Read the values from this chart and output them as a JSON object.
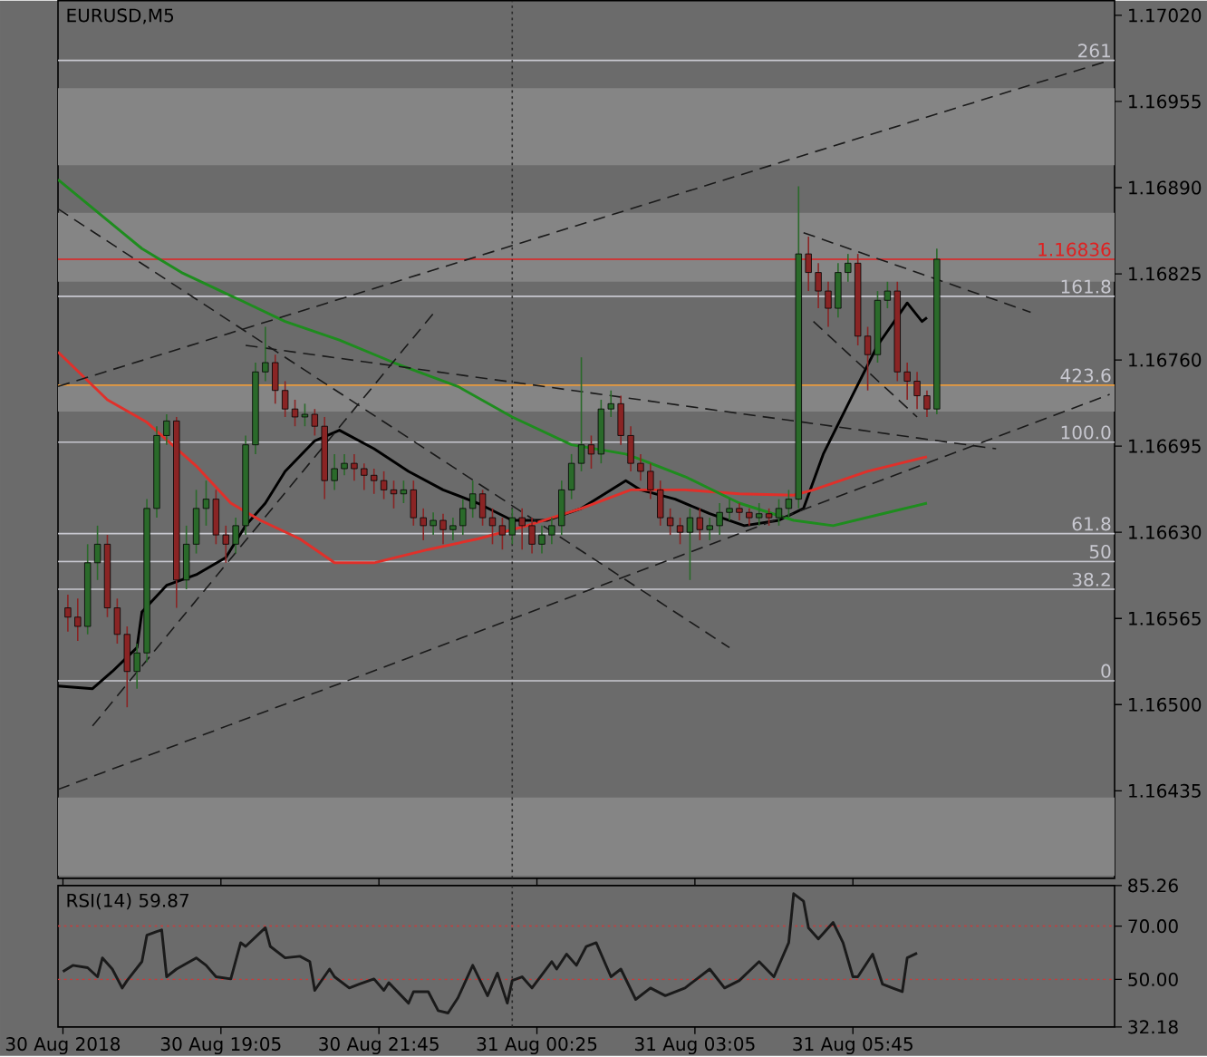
{
  "chart_data": [
    {
      "type": "candlestick",
      "title": "EURUSD,M5",
      "x": [
        "2018-08-30T16:30",
        "2018-08-30T16:40",
        "2018-08-30T16:50",
        "2018-08-30T17:00",
        "2018-08-30T17:10",
        "2018-08-30T17:20",
        "2018-08-30T17:30",
        "2018-08-30T17:40",
        "2018-08-30T17:50",
        "2018-08-30T18:00",
        "2018-08-30T18:10",
        "2018-08-30T18:20",
        "2018-08-30T18:30",
        "2018-08-30T18:40",
        "2018-08-30T18:50",
        "2018-08-30T19:00",
        "2018-08-30T19:10",
        "2018-08-30T19:20",
        "2018-08-30T19:30",
        "2018-08-30T19:40",
        "2018-08-30T19:50",
        "2018-08-30T20:00",
        "2018-08-30T20:10",
        "2018-08-30T20:20",
        "2018-08-30T20:30",
        "2018-08-30T20:40",
        "2018-08-30T20:50",
        "2018-08-30T21:00",
        "2018-08-30T21:10",
        "2018-08-30T21:20",
        "2018-08-30T21:30",
        "2018-08-30T21:40",
        "2018-08-30T21:50",
        "2018-08-30T22:00",
        "2018-08-30T22:10",
        "2018-08-30T22:20",
        "2018-08-30T22:30",
        "2018-08-30T22:40",
        "2018-08-30T22:50",
        "2018-08-30T23:00",
        "2018-08-30T23:10",
        "2018-08-30T23:20",
        "2018-08-30T23:30",
        "2018-08-30T23:40",
        "2018-08-30T23:50",
        "2018-08-31T00:00",
        "2018-08-31T00:10",
        "2018-08-31T00:20",
        "2018-08-31T00:30",
        "2018-08-31T00:40",
        "2018-08-31T00:50",
        "2018-08-31T01:00",
        "2018-08-31T01:10",
        "2018-08-31T01:20",
        "2018-08-31T01:30",
        "2018-08-31T01:40",
        "2018-08-31T01:50",
        "2018-08-31T02:00",
        "2018-08-31T02:10",
        "2018-08-31T02:20",
        "2018-08-31T02:30",
        "2018-08-31T02:40",
        "2018-08-31T02:50",
        "2018-08-31T03:00",
        "2018-08-31T03:10",
        "2018-08-31T03:20",
        "2018-08-31T03:30",
        "2018-08-31T03:40",
        "2018-08-31T03:50",
        "2018-08-31T04:00",
        "2018-08-31T04:10",
        "2018-08-31T04:20",
        "2018-08-31T04:30",
        "2018-08-31T04:40",
        "2018-08-31T04:50",
        "2018-08-31T05:00",
        "2018-08-31T05:10",
        "2018-08-31T05:20",
        "2018-08-31T05:30",
        "2018-08-31T05:40",
        "2018-08-31T05:50",
        "2018-08-31T06:00",
        "2018-08-31T06:10",
        "2018-08-31T06:20",
        "2018-08-31T06:30",
        "2018-08-31T06:40",
        "2018-08-31T06:50",
        "2018-08-31T07:00",
        "2018-08-31T07:10"
      ],
      "ohlc": [
        [
          1.16573,
          1.16583,
          1.16555,
          1.16566
        ],
        [
          1.16566,
          1.1658,
          1.16548,
          1.16559
        ],
        [
          1.16559,
          1.16621,
          1.16553,
          1.16607
        ],
        [
          1.16607,
          1.16635,
          1.16594,
          1.16621
        ],
        [
          1.16621,
          1.16628,
          1.16566,
          1.16573
        ],
        [
          1.16573,
          1.1658,
          1.16546,
          1.16553
        ],
        [
          1.16553,
          1.16559,
          1.16498,
          1.16525
        ],
        [
          1.16525,
          1.16546,
          1.16512,
          1.16539
        ],
        [
          1.16539,
          1.16655,
          1.16532,
          1.16648
        ],
        [
          1.16648,
          1.1671,
          1.16641,
          1.16703
        ],
        [
          1.16703,
          1.16719,
          1.16696,
          1.16714
        ],
        [
          1.16714,
          1.16717,
          1.16573,
          1.16594
        ],
        [
          1.16594,
          1.16635,
          1.16587,
          1.16621
        ],
        [
          1.16621,
          1.16662,
          1.16614,
          1.16648
        ],
        [
          1.16648,
          1.16669,
          1.16635,
          1.16655
        ],
        [
          1.16655,
          1.16662,
          1.16621,
          1.16628
        ],
        [
          1.16628,
          1.16635,
          1.16607,
          1.16621
        ],
        [
          1.16621,
          1.16641,
          1.16614,
          1.16635
        ],
        [
          1.16635,
          1.16703,
          1.16628,
          1.16696
        ],
        [
          1.16696,
          1.16758,
          1.16689,
          1.16751
        ],
        [
          1.16751,
          1.16785,
          1.16744,
          1.16758
        ],
        [
          1.16758,
          1.16764,
          1.16727,
          1.16737
        ],
        [
          1.16737,
          1.16744,
          1.16717,
          1.16723
        ],
        [
          1.16723,
          1.1673,
          1.1671,
          1.16717
        ],
        [
          1.16717,
          1.16727,
          1.1671,
          1.16719
        ],
        [
          1.16719,
          1.16723,
          1.16703,
          1.1671
        ],
        [
          1.1671,
          1.16717,
          1.16655,
          1.16669
        ],
        [
          1.16669,
          1.16689,
          1.16662,
          1.16678
        ],
        [
          1.16678,
          1.16689,
          1.16673,
          1.16682
        ],
        [
          1.16682,
          1.16689,
          1.16669,
          1.16678
        ],
        [
          1.16678,
          1.16682,
          1.16662,
          1.16673
        ],
        [
          1.16673,
          1.16678,
          1.16659,
          1.16669
        ],
        [
          1.16669,
          1.16676,
          1.16655,
          1.16662
        ],
        [
          1.16662,
          1.16669,
          1.16648,
          1.16659
        ],
        [
          1.16659,
          1.16669,
          1.16652,
          1.16662
        ],
        [
          1.16662,
          1.16669,
          1.16635,
          1.16641
        ],
        [
          1.16641,
          1.16648,
          1.16624,
          1.16635
        ],
        [
          1.16635,
          1.16645,
          1.16628,
          1.16639
        ],
        [
          1.16639,
          1.16644,
          1.16621,
          1.16632
        ],
        [
          1.16632,
          1.16641,
          1.16624,
          1.16635
        ],
        [
          1.16635,
          1.16655,
          1.16628,
          1.16648
        ],
        [
          1.16648,
          1.16669,
          1.16641,
          1.16659
        ],
        [
          1.16659,
          1.16662,
          1.16635,
          1.16641
        ],
        [
          1.16641,
          1.16648,
          1.16621,
          1.16635
        ],
        [
          1.16635,
          1.16641,
          1.16617,
          1.16628
        ],
        [
          1.16628,
          1.16648,
          1.16621,
          1.16641
        ],
        [
          1.16641,
          1.16648,
          1.16617,
          1.16635
        ],
        [
          1.16635,
          1.16641,
          1.16614,
          1.16621
        ],
        [
          1.16621,
          1.16635,
          1.16614,
          1.16628
        ],
        [
          1.16628,
          1.16641,
          1.16621,
          1.16635
        ],
        [
          1.16635,
          1.16669,
          1.16628,
          1.16662
        ],
        [
          1.16662,
          1.16689,
          1.16655,
          1.16682
        ],
        [
          1.16682,
          1.16762,
          1.16676,
          1.16696
        ],
        [
          1.16696,
          1.16703,
          1.16678,
          1.16689
        ],
        [
          1.16689,
          1.1673,
          1.16682,
          1.16723
        ],
        [
          1.16723,
          1.16737,
          1.16717,
          1.16727
        ],
        [
          1.16727,
          1.16733,
          1.16696,
          1.16703
        ],
        [
          1.16703,
          1.1671,
          1.16676,
          1.16682
        ],
        [
          1.16682,
          1.16689,
          1.16669,
          1.16676
        ],
        [
          1.16676,
          1.16682,
          1.16655,
          1.16662
        ],
        [
          1.16662,
          1.16669,
          1.16635,
          1.16641
        ],
        [
          1.16641,
          1.16648,
          1.16628,
          1.16635
        ],
        [
          1.16635,
          1.16641,
          1.16621,
          1.1663
        ],
        [
          1.1663,
          1.16648,
          1.16594,
          1.16641
        ],
        [
          1.16641,
          1.16648,
          1.16624,
          1.16632
        ],
        [
          1.16632,
          1.16641,
          1.16624,
          1.16635
        ],
        [
          1.16635,
          1.16652,
          1.16628,
          1.16645
        ],
        [
          1.16645,
          1.16655,
          1.16639,
          1.16648
        ],
        [
          1.16648,
          1.16652,
          1.16639,
          1.16645
        ],
        [
          1.16645,
          1.16648,
          1.16635,
          1.16641
        ],
        [
          1.16641,
          1.16652,
          1.16635,
          1.16644
        ],
        [
          1.16644,
          1.16648,
          1.16635,
          1.16641
        ],
        [
          1.16641,
          1.16655,
          1.16635,
          1.16648
        ],
        [
          1.16648,
          1.16662,
          1.16641,
          1.16655
        ],
        [
          1.16655,
          1.16891,
          1.16648,
          1.1684
        ],
        [
          1.1684,
          1.16853,
          1.16812,
          1.16826
        ],
        [
          1.16826,
          1.16833,
          1.16799,
          1.16812
        ],
        [
          1.16812,
          1.16819,
          1.16785,
          1.16799
        ],
        [
          1.16799,
          1.16833,
          1.16792,
          1.16826
        ],
        [
          1.16826,
          1.1684,
          1.16819,
          1.16833
        ],
        [
          1.16833,
          1.1684,
          1.16771,
          1.16778
        ],
        [
          1.16778,
          1.16785,
          1.16737,
          1.16764
        ],
        [
          1.16764,
          1.16812,
          1.16758,
          1.16805
        ],
        [
          1.16805,
          1.16819,
          1.16799,
          1.16812
        ],
        [
          1.16812,
          1.16819,
          1.16744,
          1.16751
        ],
        [
          1.16751,
          1.16758,
          1.1673,
          1.16744
        ],
        [
          1.16744,
          1.16751,
          1.16723,
          1.16733
        ],
        [
          1.16733,
          1.16737,
          1.16717,
          1.16723
        ],
        [
          1.16723,
          1.16844,
          1.16719,
          1.16836
        ]
      ],
      "series": [
        {
          "type": "line",
          "color": "#000000",
          "x": [
            "2018-08-30T16:20",
            "2018-08-30T16:55",
            "2018-08-30T17:15",
            "2018-08-30T17:40",
            "2018-08-30T17:45",
            "2018-08-30T18:10",
            "2018-08-30T18:40",
            "2018-08-30T19:10",
            "2018-08-30T19:30",
            "2018-08-30T19:50",
            "2018-08-30T20:10",
            "2018-08-30T20:40",
            "2018-08-30T21:05",
            "2018-08-30T21:40",
            "2018-08-30T22:15",
            "2018-08-30T22:50",
            "2018-08-30T23:25",
            "2018-08-31T00:00",
            "2018-08-31T00:35",
            "2018-08-31T01:10",
            "2018-08-31T01:55",
            "2018-08-31T02:10",
            "2018-08-31T02:45",
            "2018-08-31T03:20",
            "2018-08-31T03:55",
            "2018-08-31T04:30",
            "2018-08-31T04:55",
            "2018-08-31T05:15",
            "2018-08-31T05:45",
            "2018-08-31T06:10",
            "2018-08-31T06:40",
            "2018-08-31T06:55",
            "2018-08-31T07:00"
          ],
          "values": [
            1.16514,
            1.16512,
            1.16525,
            1.16543,
            1.1657,
            1.1659,
            1.16598,
            1.16611,
            1.16635,
            1.16652,
            1.16676,
            1.16699,
            1.16707,
            1.16693,
            1.16676,
            1.16662,
            1.16652,
            1.16639,
            1.16639,
            1.16648,
            1.16669,
            1.16662,
            1.16655,
            1.16644,
            1.16635,
            1.16639,
            1.16648,
            1.16689,
            1.16734,
            1.16771,
            1.16803,
            1.16789,
            1.16792
          ]
        },
        {
          "type": "line",
          "color": "#e0302a",
          "x": [
            "2018-08-30T16:20",
            "2018-08-30T17:10",
            "2018-08-30T17:50",
            "2018-08-30T18:40",
            "2018-08-30T19:15",
            "2018-08-30T19:45",
            "2018-08-30T20:25",
            "2018-08-30T21:00",
            "2018-08-30T21:40",
            "2018-08-30T22:35",
            "2018-08-30T23:25",
            "2018-08-31T00:15",
            "2018-08-31T01:10",
            "2018-08-31T02:00",
            "2018-08-31T02:55",
            "2018-08-31T03:50",
            "2018-08-31T04:45",
            "2018-08-31T05:05",
            "2018-08-31T06:00",
            "2018-08-31T07:00"
          ],
          "values": [
            1.16766,
            1.1673,
            1.16713,
            1.1668,
            1.16652,
            1.16639,
            1.16625,
            1.16607,
            1.16607,
            1.16617,
            1.16625,
            1.16635,
            1.16648,
            1.16662,
            1.16662,
            1.16659,
            1.16658,
            1.16662,
            1.16676,
            1.16687
          ]
        },
        {
          "type": "line",
          "color": "#1e8c1e",
          "x": [
            "2018-08-30T16:20",
            "2018-08-30T17:45",
            "2018-08-30T18:25",
            "2018-08-30T19:25",
            "2018-08-30T20:10",
            "2018-08-30T21:05",
            "2018-08-30T22:00",
            "2018-08-30T23:05",
            "2018-08-31T00:00",
            "2018-08-31T01:00",
            "2018-08-31T01:55",
            "2018-08-31T02:10",
            "2018-08-31T02:55",
            "2018-08-31T03:50",
            "2018-08-31T04:45",
            "2018-08-31T05:25",
            "2018-08-31T06:15",
            "2018-08-31T07:00"
          ],
          "values": [
            1.16896,
            1.16844,
            1.16826,
            1.16805,
            1.16789,
            1.16775,
            1.16758,
            1.1674,
            1.16717,
            1.16696,
            1.16689,
            1.16685,
            1.16672,
            1.16652,
            1.16639,
            1.16635,
            1.16644,
            1.16652
          ]
        },
        {
          "type": "line",
          "color": "#1a1a1a",
          "line_style": "dashed",
          "x": [
            "2018-08-30T16:20",
            "2018-08-31T10:05"
          ],
          "values": [
            1.1674,
            1.16986
          ]
        },
        {
          "type": "line",
          "color": "#1a1a1a",
          "line_style": "dashed",
          "x": [
            "2018-08-30T16:20",
            "2018-08-31T10:05"
          ],
          "values": [
            1.16436,
            1.16734
          ]
        },
        {
          "type": "line",
          "color": "#1a1a1a",
          "line_style": "dashed",
          "x": [
            "2018-08-30T16:20",
            "2018-08-31T03:40"
          ],
          "values": [
            1.16874,
            1.16543
          ]
        },
        {
          "type": "line",
          "color": "#1a1a1a",
          "line_style": "dashed",
          "x": [
            "2018-08-30T19:30",
            "2018-08-31T08:10"
          ],
          "values": [
            1.16771,
            1.16693
          ]
        },
        {
          "type": "line",
          "color": "#1a1a1a",
          "line_style": "dashed",
          "x": [
            "2018-08-30T16:55",
            "2018-08-30T22:40"
          ],
          "values": [
            1.16484,
            1.16795
          ]
        },
        {
          "type": "line",
          "color": "#1a1a1a",
          "line_style": "dashed",
          "x": [
            "2018-08-31T04:55",
            "2018-08-31T08:45"
          ],
          "values": [
            1.16856,
            1.16796
          ]
        },
        {
          "type": "line",
          "color": "#1a1a1a",
          "line_style": "dashed",
          "x": [
            "2018-08-31T05:05",
            "2018-08-31T06:50"
          ],
          "values": [
            1.16789,
            1.16717
          ]
        }
      ],
      "bands": [
        {
          "axis": "y",
          "from": 1.16907,
          "to": 1.16965,
          "color": "#858585"
        },
        {
          "axis": "y",
          "from": 1.16819,
          "to": 1.16871,
          "color": "#858585"
        },
        {
          "axis": "y",
          "from": 1.16721,
          "to": 1.16741,
          "color": "#858585"
        },
        {
          "axis": "y",
          "from": 1.16371,
          "to": 1.1643,
          "color": "#858585"
        }
      ],
      "ref_lines": [
        {
          "axis": "y",
          "value": 1.16986,
          "color": "#c8c8d0"
        },
        {
          "axis": "y",
          "value": 1.16836,
          "label": "1.16836",
          "color": "#e02020"
        },
        {
          "axis": "y",
          "value": 1.16808,
          "color": "#c8c8d0"
        },
        {
          "axis": "y",
          "value": 1.16741,
          "color": "#e89a3c"
        },
        {
          "axis": "y",
          "value": 1.16698,
          "color": "#c8c8d0"
        },
        {
          "axis": "y",
          "value": 1.16629,
          "color": "#c8c8d0"
        },
        {
          "axis": "y",
          "value": 1.16608,
          "color": "#c8c8d0"
        },
        {
          "axis": "y",
          "value": 1.16587,
          "color": "#c8c8d0"
        },
        {
          "axis": "y",
          "value": 1.16518,
          "color": "#c8c8d0"
        },
        {
          "axis": "x",
          "value": "2018-08-31T00:00",
          "color": "#2a2a2a",
          "line_style": "dotted"
        }
      ],
      "annotations": [
        {
          "text": "261",
          "x": "2018-08-31T10:10",
          "y": 1.16986
        },
        {
          "text": "161.8",
          "x": "2018-08-31T10:10",
          "y": 1.16808
        },
        {
          "text": "423.6",
          "x": "2018-08-31T10:10",
          "y": 1.16741
        },
        {
          "text": "100.0",
          "x": "2018-08-31T10:10",
          "y": 1.16698
        },
        {
          "text": "61.8",
          "x": "2018-08-31T10:10",
          "y": 1.16629
        },
        {
          "text": "50",
          "x": "2018-08-31T10:10",
          "y": 1.16608
        },
        {
          "text": "38.2",
          "x": "2018-08-31T10:10",
          "y": 1.16587
        },
        {
          "text": "0",
          "x": "2018-08-31T10:10",
          "y": 1.16518
        }
      ],
      "xticks": [
        {
          "value": "2018-08-30T16:25",
          "label": null
        },
        {
          "value": "2018-08-30T19:05",
          "label": null
        },
        {
          "value": "2018-08-30T21:45",
          "label": null
        },
        {
          "value": "2018-08-31T00:25",
          "label": null
        },
        {
          "value": "2018-08-31T03:05",
          "label": null
        },
        {
          "value": "2018-08-31T05:45",
          "label": null
        }
      ],
      "xlim": [
        "2018-08-30T16:20",
        "2018-08-31T10:10"
      ],
      "ylim": [
        1.16369,
        1.17031
      ],
      "yticks": [
        1.16435,
        {
          "value": 1.165,
          "label": "1.16500"
        },
        1.16565,
        {
          "value": 1.1663,
          "label": "1.16630"
        },
        1.16695,
        {
          "value": 1.1676,
          "label": "1.16760"
        },
        1.16825,
        {
          "value": 1.1689,
          "label": "1.16890"
        },
        1.16955,
        {
          "value": 1.1702,
          "label": "1.17020"
        }
      ],
      "tick_labels": "y"
    },
    {
      "type": "line",
      "title": "RSI(14) 59.87",
      "series": [
        {
          "color": "#1a1a1a",
          "x": [
            "2018-08-30T16:25",
            "2018-08-30T16:35",
            "2018-08-30T16:50",
            "2018-08-30T17:00",
            "2018-08-30T17:05",
            "2018-08-30T17:15",
            "2018-08-30T17:25",
            "2018-08-30T17:30",
            "2018-08-30T17:45",
            "2018-08-30T17:50",
            "2018-08-30T18:00",
            "2018-08-30T18:05",
            "2018-08-30T18:10",
            "2018-08-30T18:20",
            "2018-08-30T18:40",
            "2018-08-30T18:50",
            "2018-08-30T19:00",
            "2018-08-30T19:15",
            "2018-08-30T19:25",
            "2018-08-30T19:30",
            "2018-08-30T19:50",
            "2018-08-30T19:55",
            "2018-08-30T20:10",
            "2018-08-30T20:25",
            "2018-08-30T20:35",
            "2018-08-30T20:40",
            "2018-08-30T20:55",
            "2018-08-30T21:00",
            "2018-08-30T21:15",
            "2018-08-30T21:25",
            "2018-08-30T21:40",
            "2018-08-30T21:50",
            "2018-08-30T21:55",
            "2018-08-30T22:15",
            "2018-08-30T22:20",
            "2018-08-30T22:35",
            "2018-08-30T22:45",
            "2018-08-30T22:55",
            "2018-08-30T23:05",
            "2018-08-30T23:20",
            "2018-08-30T23:35",
            "2018-08-30T23:45",
            "2018-08-30T23:55",
            "2018-08-31T00:00",
            "2018-08-31T00:10",
            "2018-08-31T00:20",
            "2018-08-31T00:40",
            "2018-08-31T00:45",
            "2018-08-31T00:55",
            "2018-08-31T01:05",
            "2018-08-31T01:15",
            "2018-08-31T01:25",
            "2018-08-31T01:40",
            "2018-08-31T01:50",
            "2018-08-31T02:05",
            "2018-08-31T02:20",
            "2018-08-31T02:35",
            "2018-08-31T02:55",
            "2018-08-31T03:20",
            "2018-08-31T03:35",
            "2018-08-31T03:50",
            "2018-08-31T04:10",
            "2018-08-31T04:25",
            "2018-08-31T04:40",
            "2018-08-31T04:45",
            "2018-08-31T04:55",
            "2018-08-31T05:00",
            "2018-08-31T05:10",
            "2018-08-31T05:25",
            "2018-08-31T05:35",
            "2018-08-31T05:45",
            "2018-08-31T05:50",
            "2018-08-31T06:05",
            "2018-08-31T06:15",
            "2018-08-31T06:25",
            "2018-08-31T06:35",
            "2018-08-31T06:40",
            "2018-08-31T06:50"
          ],
          "values": [
            53.0,
            55.3,
            54.4,
            51.0,
            58.1,
            53.9,
            46.8,
            49.6,
            56.7,
            66.6,
            68.0,
            68.6,
            51.0,
            53.9,
            58.1,
            55.3,
            51.0,
            50.2,
            63.8,
            62.4,
            69.4,
            62.4,
            58.1,
            58.7,
            56.7,
            45.9,
            53.9,
            51.0,
            46.8,
            48.2,
            50.2,
            45.9,
            48.8,
            41.1,
            45.4,
            45.4,
            38.3,
            37.4,
            43.1,
            55.3,
            43.9,
            52.4,
            41.1,
            49.6,
            51.0,
            46.8,
            56.7,
            53.9,
            59.5,
            55.3,
            62.4,
            63.8,
            51.0,
            53.9,
            42.5,
            46.8,
            43.9,
            46.8,
            53.9,
            46.8,
            49.6,
            56.7,
            51.0,
            63.8,
            82.2,
            79.4,
            69.4,
            65.2,
            71.4,
            63.8,
            51.0,
            51.0,
            59.5,
            48.2,
            46.8,
            45.4,
            58.1,
            59.87
          ]
        }
      ],
      "ref_lines": [
        {
          "axis": "y",
          "value": 70,
          "color": "#c83c3c",
          "line_style": "dotted"
        },
        {
          "axis": "y",
          "value": 50,
          "color": "#c83c3c",
          "line_style": "dotted"
        },
        {
          "axis": "x",
          "value": "2018-08-31T00:00",
          "color": "#2a2a2a",
          "line_style": "dotted"
        }
      ],
      "xlim": [
        "2018-08-30T16:20",
        "2018-08-31T10:10"
      ],
      "xticks": [
        {
          "value": "2018-08-30T16:25",
          "label": "30 Aug 2018"
        },
        {
          "value": "2018-08-30T19:05",
          "label": "30 Aug 19:05"
        },
        {
          "value": "2018-08-30T21:45",
          "label": "30 Aug 21:45"
        },
        {
          "value": "2018-08-31T00:25",
          "label": "31 Aug 00:25"
        },
        {
          "value": "2018-08-31T03:05",
          "label": "31 Aug 03:05"
        },
        {
          "value": "2018-08-31T05:45",
          "label": "31 Aug 05:45"
        }
      ],
      "ylim": [
        32.18,
        85.26
      ],
      "yticks": [
        85.26,
        {
          "value": 70,
          "label": "70.00"
        },
        {
          "value": 50,
          "label": "50.00"
        },
        32.18
      ]
    }
  ]
}
